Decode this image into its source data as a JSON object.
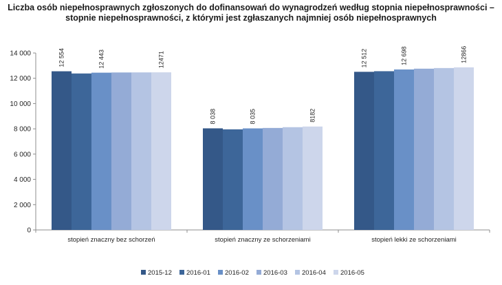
{
  "chart_data": {
    "type": "bar",
    "title_line1": "Liczba osób niepełnosprawnych zgłoszonych do dofinansowań do wynagrodzeń według stopnia niepełnosprawności –",
    "title_line2": "stopnie niepełnosprawności, z którymi jest zgłaszanych najmniej osób niepełnosprawnych",
    "categories": [
      "stopień znaczny bez schorzeń",
      "stopień znaczny ze schorzeniami",
      "stopień lekki ze schorzeniami"
    ],
    "series": [
      {
        "name": "2015-12",
        "color": "#345888",
        "values": [
          12554,
          8038,
          12512
        ]
      },
      {
        "name": "2016-01",
        "color": "#3d6699",
        "values": [
          12380,
          7960,
          12560
        ]
      },
      {
        "name": "2016-02",
        "color": "#6990c7",
        "values": [
          12443,
          8035,
          12698
        ]
      },
      {
        "name": "2016-03",
        "color": "#94abd6",
        "values": [
          12460,
          8070,
          12760
        ]
      },
      {
        "name": "2016-04",
        "color": "#b4c4e3",
        "values": [
          12465,
          8130,
          12810
        ]
      },
      {
        "name": "2016-05",
        "color": "#cdd6eb",
        "values": [
          12471,
          8182,
          12866
        ]
      }
    ],
    "data_labels": [
      {
        "category": 0,
        "series": 0,
        "text": "12 554"
      },
      {
        "category": 0,
        "series": 2,
        "text": "12 443"
      },
      {
        "category": 0,
        "series": 5,
        "text": "12471"
      },
      {
        "category": 1,
        "series": 0,
        "text": "8 038"
      },
      {
        "category": 1,
        "series": 2,
        "text": "8 035"
      },
      {
        "category": 1,
        "series": 5,
        "text": "8182"
      },
      {
        "category": 2,
        "series": 0,
        "text": "12 512"
      },
      {
        "category": 2,
        "series": 2,
        "text": "12 698"
      },
      {
        "category": 2,
        "series": 5,
        "text": "12866"
      }
    ],
    "ylim": [
      0,
      14000
    ],
    "yticks": [
      0,
      2000,
      4000,
      6000,
      8000,
      10000,
      12000,
      14000
    ],
    "ytick_labels": [
      "0",
      "2 000",
      "4 000",
      "6 000",
      "8 000",
      "10 000",
      "12 000",
      "14 000"
    ],
    "grid": false,
    "legend_position": "bottom"
  }
}
